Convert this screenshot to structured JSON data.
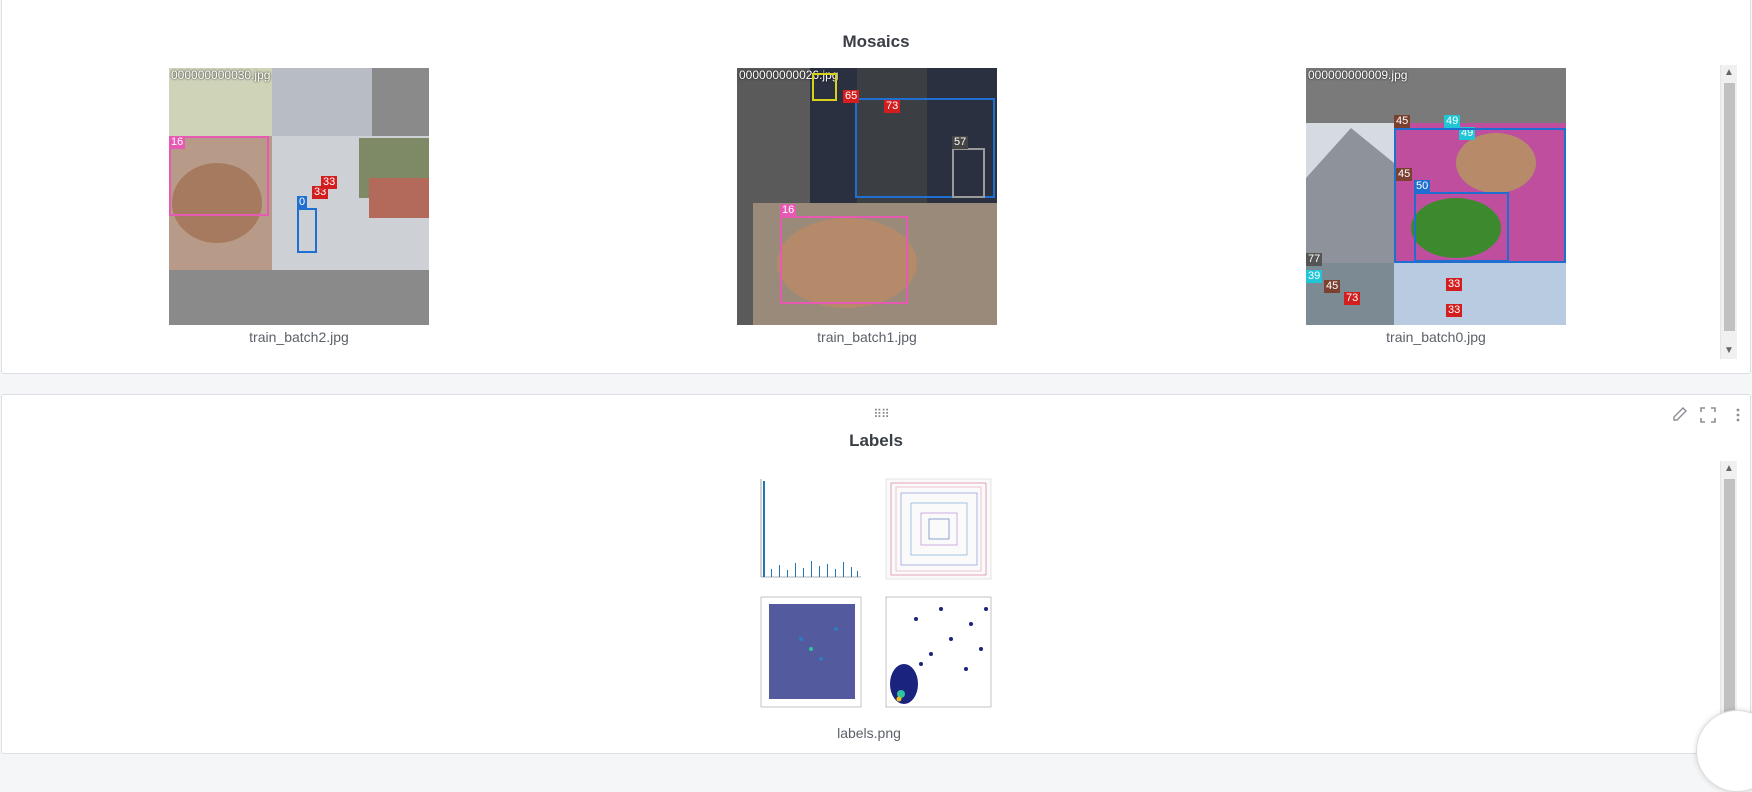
{
  "mosaics": {
    "title": "Mosaics",
    "items": [
      {
        "caption": "train_batch2.jpg",
        "overlay_name": "000000000030.jpg",
        "tags": [
          "16",
          "0",
          "33",
          "33"
        ]
      },
      {
        "caption": "train_batch1.jpg",
        "overlay_name": "000000000026.jpg",
        "tags": [
          "65",
          "73",
          "57",
          "16"
        ]
      },
      {
        "caption": "train_batch0.jpg",
        "overlay_name": "000000000009.jpg",
        "tags": [
          "45",
          "49",
          "49",
          "45",
          "50",
          "77",
          "39",
          "45",
          "73",
          "33",
          "33"
        ]
      }
    ]
  },
  "labels": {
    "title": "Labels",
    "caption": "labels.png"
  },
  "icons": {
    "edit": "pencil-icon",
    "fullscreen": "expand-icon",
    "menu": "kebab-menu-icon",
    "drag": "drag-handle-icon"
  },
  "colors": {
    "box_blue": "#1f6fd1",
    "box_pink": "#e65ab4",
    "box_red": "#d21e1e",
    "box_yellow": "#d6d21c",
    "box_cyan": "#20c6d6"
  }
}
